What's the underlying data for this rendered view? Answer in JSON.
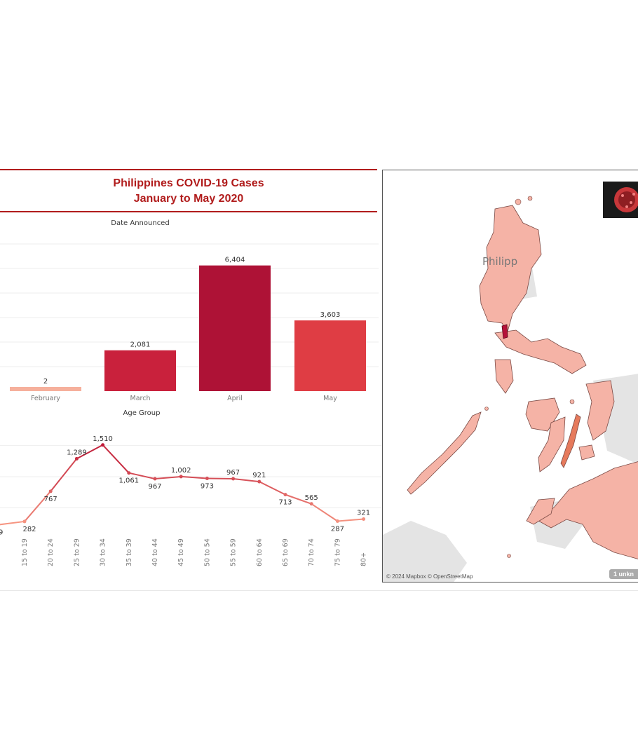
{
  "dashboard": {
    "title_line1": "Philippines COVID-19 Cases",
    "title_line2": "January to May 2020",
    "accent_color": "#b11c1c"
  },
  "chart_data": [
    {
      "type": "bar",
      "title": "Date Announced",
      "categories": [
        "February",
        "March",
        "April",
        "May"
      ],
      "values": [
        2,
        2081,
        6404,
        3603
      ],
      "value_labels": [
        "2",
        "2,081",
        "6,404",
        "3,603"
      ],
      "colors": [
        "#f6b09c",
        "#c9213c",
        "#ae1236",
        "#df3d44"
      ],
      "ylim": [
        0,
        7500
      ],
      "grid": true
    },
    {
      "type": "line",
      "title": "Age Group",
      "categories": [
        "15 to 19",
        "20 to 24",
        "25 to 29",
        "30 to 34",
        "35 to 39",
        "40 to 44",
        "45 to 49",
        "50 to 54",
        "55 to 59",
        "60 to 64",
        "65 to 69",
        "70 to 74",
        "75 to 79",
        "80+"
      ],
      "values": [
        282,
        767,
        1289,
        1510,
        1061,
        967,
        1002,
        973,
        967,
        921,
        713,
        565,
        287,
        321
      ],
      "value_labels": [
        "282",
        "767",
        "1,289",
        "1,510",
        "1,061",
        "967",
        "1,002",
        "973",
        "967",
        "921",
        "713",
        "565",
        "287",
        "321"
      ],
      "ylim": [
        0,
        1800
      ],
      "partial_first_label": "9",
      "grid": true
    }
  ],
  "map": {
    "label": "Philipp",
    "attribution": "© 2024 Mapbox © OpenStreetMap",
    "unknown_badge": "1 unkn",
    "fill_color": "#f5b3a6",
    "highlight_color": "#b5123a",
    "icon": "coronavirus-image"
  }
}
